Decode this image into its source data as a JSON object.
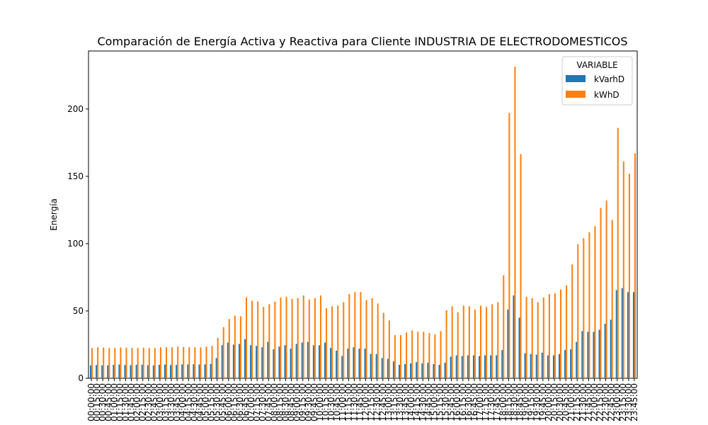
{
  "chart_data": {
    "type": "bar",
    "title": "Comparación de Energía Activa y Reactiva para Cliente INDUSTRIA DE ELECTRODOMESTICOS",
    "y_label": "Energía",
    "legend_title": "VARIABLE",
    "legend_position": "upper right",
    "grid": false,
    "ylim": [
      0,
      243.1
    ],
    "yticks": [
      0,
      50,
      100,
      150,
      200
    ],
    "categories": [
      "00:00:00",
      "00:15:00",
      "00:30:00",
      "00:45:00",
      "01:00:00",
      "01:15:00",
      "01:30:00",
      "01:45:00",
      "02:00:00",
      "02:15:00",
      "02:30:00",
      "02:45:00",
      "03:00:00",
      "03:15:00",
      "03:30:00",
      "03:45:00",
      "04:00:00",
      "04:15:00",
      "04:30:00",
      "04:45:00",
      "05:00:00",
      "05:15:00",
      "05:30:00",
      "05:45:00",
      "06:00:00",
      "06:15:00",
      "06:30:00",
      "06:45:00",
      "07:00:00",
      "07:15:00",
      "07:30:00",
      "07:45:00",
      "08:00:00",
      "08:15:00",
      "08:30:00",
      "08:45:00",
      "09:00:00",
      "09:15:00",
      "09:30:00",
      "09:45:00",
      "10:00:00",
      "10:15:00",
      "10:30:00",
      "10:45:00",
      "11:00:00",
      "11:15:00",
      "11:30:00",
      "11:45:00",
      "12:00:00",
      "12:15:00",
      "12:30:00",
      "12:45:00",
      "13:00:00",
      "13:15:00",
      "13:30:00",
      "13:45:00",
      "14:00:00",
      "14:15:00",
      "14:30:00",
      "14:45:00",
      "15:00:00",
      "15:15:00",
      "15:30:00",
      "15:45:00",
      "16:00:00",
      "16:15:00",
      "16:30:00",
      "16:45:00",
      "17:00:00",
      "17:15:00",
      "17:30:00",
      "17:45:00",
      "18:00:00",
      "18:15:00",
      "18:30:00",
      "18:45:00",
      "19:00:00",
      "19:15:00",
      "19:30:00",
      "19:45:00",
      "20:00:00",
      "20:15:00",
      "20:30:00",
      "20:45:00",
      "21:00:00",
      "21:15:00",
      "21:30:00",
      "21:45:00",
      "22:00:00",
      "22:15:00",
      "22:30:00",
      "22:45:00",
      "23:00:00",
      "23:15:00",
      "23:30:00",
      "23:45:00"
    ],
    "series": [
      {
        "name": "kVarhD",
        "color": "#1f77b4",
        "values": [
          9.5,
          9.8,
          9.6,
          9.7,
          10,
          10.2,
          9.8,
          9.7,
          10,
          10.1,
          9.7,
          9.6,
          10,
          10.2,
          9.8,
          9.9,
          10.3,
          10.2,
          10.4,
          10.2,
          10.3,
          10.6,
          15,
          24.5,
          26.5,
          25,
          25.5,
          29,
          24.5,
          24,
          23,
          27,
          21.5,
          23.5,
          24.5,
          22,
          25.5,
          26.5,
          27,
          24.5,
          24.5,
          26.5,
          22.5,
          20.5,
          16.5,
          22,
          23,
          22,
          22,
          18,
          18,
          15,
          14.5,
          12.5,
          10,
          10.5,
          11,
          12,
          11,
          11.5,
          10.5,
          10,
          11.5,
          16,
          17,
          16.5,
          17,
          17,
          16.5,
          17,
          17,
          17,
          21,
          51,
          61.5,
          45,
          18.5,
          18,
          17.5,
          19,
          17,
          17,
          18,
          21,
          21.5,
          27,
          35,
          34.5,
          34.5,
          36,
          40.5,
          43.5,
          65.5,
          67,
          64,
          64
        ]
      },
      {
        "name": "kWhD",
        "color": "#ff7f0e",
        "values": [
          22.5,
          23,
          22.8,
          22.5,
          22.5,
          22.8,
          22.7,
          22.5,
          22.5,
          22.7,
          22.5,
          22.5,
          23,
          23,
          23,
          23.5,
          23.2,
          23,
          23,
          23,
          23.5,
          24,
          30,
          38,
          44,
          46.5,
          46,
          60,
          57.5,
          57,
          53,
          55,
          57,
          60,
          60.5,
          59,
          59.5,
          61.5,
          58.5,
          59.5,
          61.5,
          52,
          53.5,
          54,
          56.5,
          62.5,
          64,
          64,
          58,
          59.5,
          55.5,
          48.5,
          43,
          32,
          32,
          34,
          35.5,
          34.5,
          34.5,
          33.5,
          32.5,
          35,
          50.5,
          53.5,
          49,
          54,
          53.5,
          51,
          54,
          53,
          55,
          56.5,
          76.5,
          197,
          231.5,
          166.5,
          60.5,
          59.5,
          56.5,
          60,
          62.5,
          63,
          66,
          69,
          84.5,
          99.5,
          104,
          108.5,
          113,
          126.5,
          132,
          117.5,
          186,
          161,
          152,
          167
        ]
      }
    ]
  }
}
